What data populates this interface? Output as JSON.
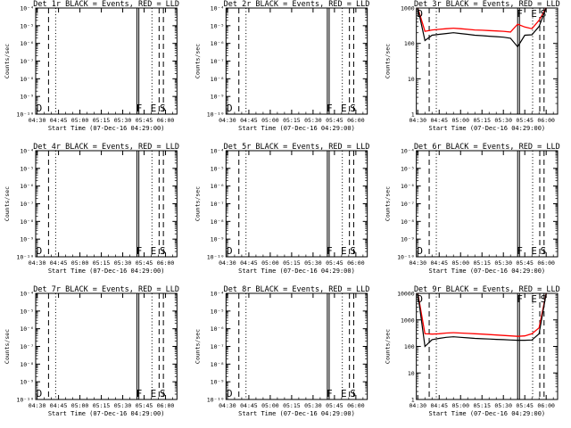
{
  "figure": {
    "colors": {
      "background": "#ffffff",
      "axes": "#000000",
      "events": "#000000",
      "lld": "#ff0000"
    },
    "x_tick_labels": [
      "04:30",
      "04:45",
      "05:00",
      "05:15",
      "05:30",
      "05:45",
      "06:00"
    ],
    "x_title": "Start Time (07-Dec-16 04:29:00)",
    "y_title": "Counts/sec"
  },
  "chart_data": [
    {
      "type": "line",
      "title": "Det 1r BLACK = Events, RED = LLD",
      "scale": "log",
      "ylim": [
        1e-10,
        0.0001
      ],
      "y_tick_labels": [
        "10⁻⁴",
        "10⁻⁵",
        "10⁻⁶",
        "10⁻⁷",
        "10⁻⁸",
        "10⁻⁹",
        "10⁻¹⁰"
      ],
      "markers": [
        "D",
        "F",
        "E",
        "S"
      ],
      "x": [],
      "events": [],
      "lld": []
    },
    {
      "type": "line",
      "title": "Det 2r BLACK = Events, RED = LLD",
      "scale": "log",
      "ylim": [
        1e-10,
        0.0001
      ],
      "y_tick_labels": [
        "10⁻⁴",
        "10⁻⁵",
        "10⁻⁶",
        "10⁻⁷",
        "10⁻⁸",
        "10⁻⁹",
        "10⁻¹⁰"
      ],
      "markers": [
        "D",
        "F",
        "E",
        "S"
      ],
      "x": [],
      "events": [],
      "lld": []
    },
    {
      "type": "line",
      "title": "Det 3r BLACK = Events, RED = LLD",
      "scale": "log",
      "ylim": [
        1,
        1000
      ],
      "y_tick_labels": [
        "1000",
        "100",
        "10",
        "1"
      ],
      "markers": [
        "D",
        "F",
        "E",
        "S"
      ],
      "x": [
        "04:30",
        "04:35",
        "04:40",
        "04:45",
        "04:50",
        "04:55",
        "05:00",
        "05:05",
        "05:10",
        "05:15",
        "05:20",
        "05:25",
        "05:30",
        "05:35",
        "05:40",
        "05:45",
        "05:50",
        "05:55",
        "06:00"
      ],
      "events": [
        1000,
        120,
        170,
        180,
        190,
        200,
        190,
        180,
        170,
        165,
        160,
        155,
        150,
        140,
        80,
        170,
        175,
        300,
        1000
      ],
      "lld": [
        1000,
        220,
        240,
        250,
        260,
        270,
        260,
        250,
        240,
        235,
        230,
        225,
        220,
        210,
        350,
        290,
        260,
        450,
        1000
      ]
    },
    {
      "type": "line",
      "title": "Det 4r BLACK = Events, RED = LLD",
      "scale": "log",
      "ylim": [
        1e-10,
        0.0001
      ],
      "y_tick_labels": [
        "10⁻⁴",
        "10⁻⁵",
        "10⁻⁶",
        "10⁻⁷",
        "10⁻⁸",
        "10⁻⁹",
        "10⁻¹⁰"
      ],
      "markers": [
        "D",
        "F",
        "E",
        "S"
      ],
      "x": [],
      "events": [],
      "lld": []
    },
    {
      "type": "line",
      "title": "Det 5r BLACK = Events, RED = LLD",
      "scale": "log",
      "ylim": [
        1e-10,
        0.0001
      ],
      "y_tick_labels": [
        "10⁻⁴",
        "10⁻⁵",
        "10⁻⁶",
        "10⁻⁷",
        "10⁻⁸",
        "10⁻⁹",
        "10⁻¹⁰"
      ],
      "markers": [
        "D",
        "F",
        "E",
        "S"
      ],
      "x": [],
      "events": [],
      "lld": []
    },
    {
      "type": "line",
      "title": "Det 6r BLACK = Events, RED = LLD",
      "scale": "log",
      "ylim": [
        1e-10,
        0.0001
      ],
      "y_tick_labels": [
        "10⁻⁴",
        "10⁻⁵",
        "10⁻⁶",
        "10⁻⁷",
        "10⁻⁸",
        "10⁻⁹",
        "10⁻¹⁰"
      ],
      "markers": [
        "D",
        "F",
        "E",
        "S"
      ],
      "x": [],
      "events": [],
      "lld": []
    },
    {
      "type": "line",
      "title": "Det 7r BLACK = Events, RED = LLD",
      "scale": "log",
      "ylim": [
        1e-10,
        0.0001
      ],
      "y_tick_labels": [
        "10⁻⁴",
        "10⁻⁵",
        "10⁻⁶",
        "10⁻⁷",
        "10⁻⁸",
        "10⁻⁹",
        "10⁻¹⁰"
      ],
      "markers": [
        "D",
        "F",
        "E",
        "S"
      ],
      "x": [],
      "events": [],
      "lld": []
    },
    {
      "type": "line",
      "title": "Det 8r BLACK = Events, RED = LLD",
      "scale": "log",
      "ylim": [
        1e-10,
        0.0001
      ],
      "y_tick_labels": [
        "10⁻⁴",
        "10⁻⁵",
        "10⁻⁶",
        "10⁻⁷",
        "10⁻⁸",
        "10⁻⁹",
        "10⁻¹⁰"
      ],
      "markers": [
        "D",
        "F",
        "E",
        "S"
      ],
      "x": [],
      "events": [],
      "lld": []
    },
    {
      "type": "line",
      "title": "Det 9r BLACK = Events, RED = LLD",
      "scale": "log",
      "ylim": [
        1,
        10000
      ],
      "y_tick_labels": [
        "10000",
        "1000",
        "100",
        "10",
        "1"
      ],
      "markers": [
        "D",
        "F",
        "E",
        "S"
      ],
      "x": [
        "04:30",
        "04:35",
        "04:40",
        "04:45",
        "04:50",
        "04:55",
        "05:00",
        "05:05",
        "05:10",
        "05:15",
        "05:20",
        "05:25",
        "05:30",
        "05:35",
        "05:40",
        "05:45",
        "05:50",
        "05:55",
        "06:00"
      ],
      "events": [
        10000,
        100,
        180,
        200,
        220,
        230,
        220,
        210,
        200,
        195,
        190,
        185,
        180,
        175,
        170,
        170,
        175,
        300,
        10000
      ],
      "lld": [
        10000,
        300,
        290,
        300,
        320,
        330,
        320,
        310,
        300,
        290,
        280,
        270,
        260,
        250,
        240,
        250,
        300,
        500,
        10000
      ]
    }
  ]
}
